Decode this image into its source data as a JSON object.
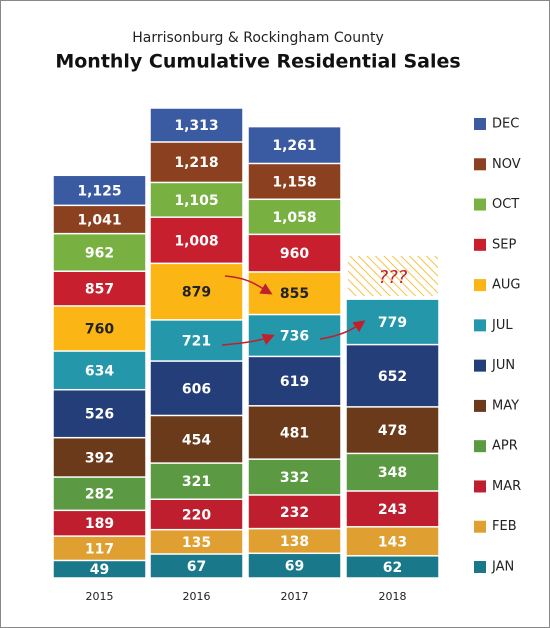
{
  "chart_data": {
    "type": "bar",
    "title": "Monthly Cumulative Residential Sales",
    "subtitle": "Harrisonburg & Rockingham County",
    "annotation": "???",
    "categories": [
      "2015",
      "2016",
      "2017",
      "2018"
    ],
    "series": [
      {
        "name": "JAN",
        "color": "#19798b",
        "values": [
          49,
          67,
          69,
          62
        ]
      },
      {
        "name": "FEB",
        "color": "#dfa031",
        "values": [
          117,
          135,
          138,
          143
        ]
      },
      {
        "name": "MAR",
        "color": "#bf1e2e",
        "values": [
          189,
          220,
          232,
          243
        ]
      },
      {
        "name": "APR",
        "color": "#5b9a42",
        "values": [
          282,
          321,
          332,
          348
        ]
      },
      {
        "name": "MAY",
        "color": "#6a3a1b",
        "values": [
          392,
          454,
          481,
          478
        ]
      },
      {
        "name": "JUN",
        "color": "#243e79",
        "values": [
          526,
          606,
          619,
          652
        ]
      },
      {
        "name": "JUL",
        "color": "#2597ab",
        "values": [
          634,
          721,
          736,
          779
        ]
      },
      {
        "name": "AUG",
        "color": "#fbb515",
        "label_color": "#222222",
        "values": [
          760,
          879,
          855,
          null
        ]
      },
      {
        "name": "SEP",
        "color": "#c81f2f",
        "values": [
          857,
          1008,
          960,
          null
        ],
        "value_labels": [
          "857",
          "1,008",
          "960",
          null
        ]
      },
      {
        "name": "OCT",
        "color": "#79b042",
        "values": [
          962,
          1105,
          1058,
          null
        ],
        "value_labels": [
          "962",
          "1,105",
          "1,058",
          null
        ]
      },
      {
        "name": "NOV",
        "color": "#8b4120",
        "values": [
          1041,
          1218,
          1158,
          null
        ],
        "value_labels": [
          "1,041",
          "1,218",
          "1,158",
          null
        ]
      },
      {
        "name": "DEC",
        "color": "#3a5aa1",
        "values": [
          1125,
          1313,
          1261,
          null
        ],
        "value_labels": [
          "1,125",
          "1,313",
          "1,261",
          null
        ]
      }
    ]
  }
}
